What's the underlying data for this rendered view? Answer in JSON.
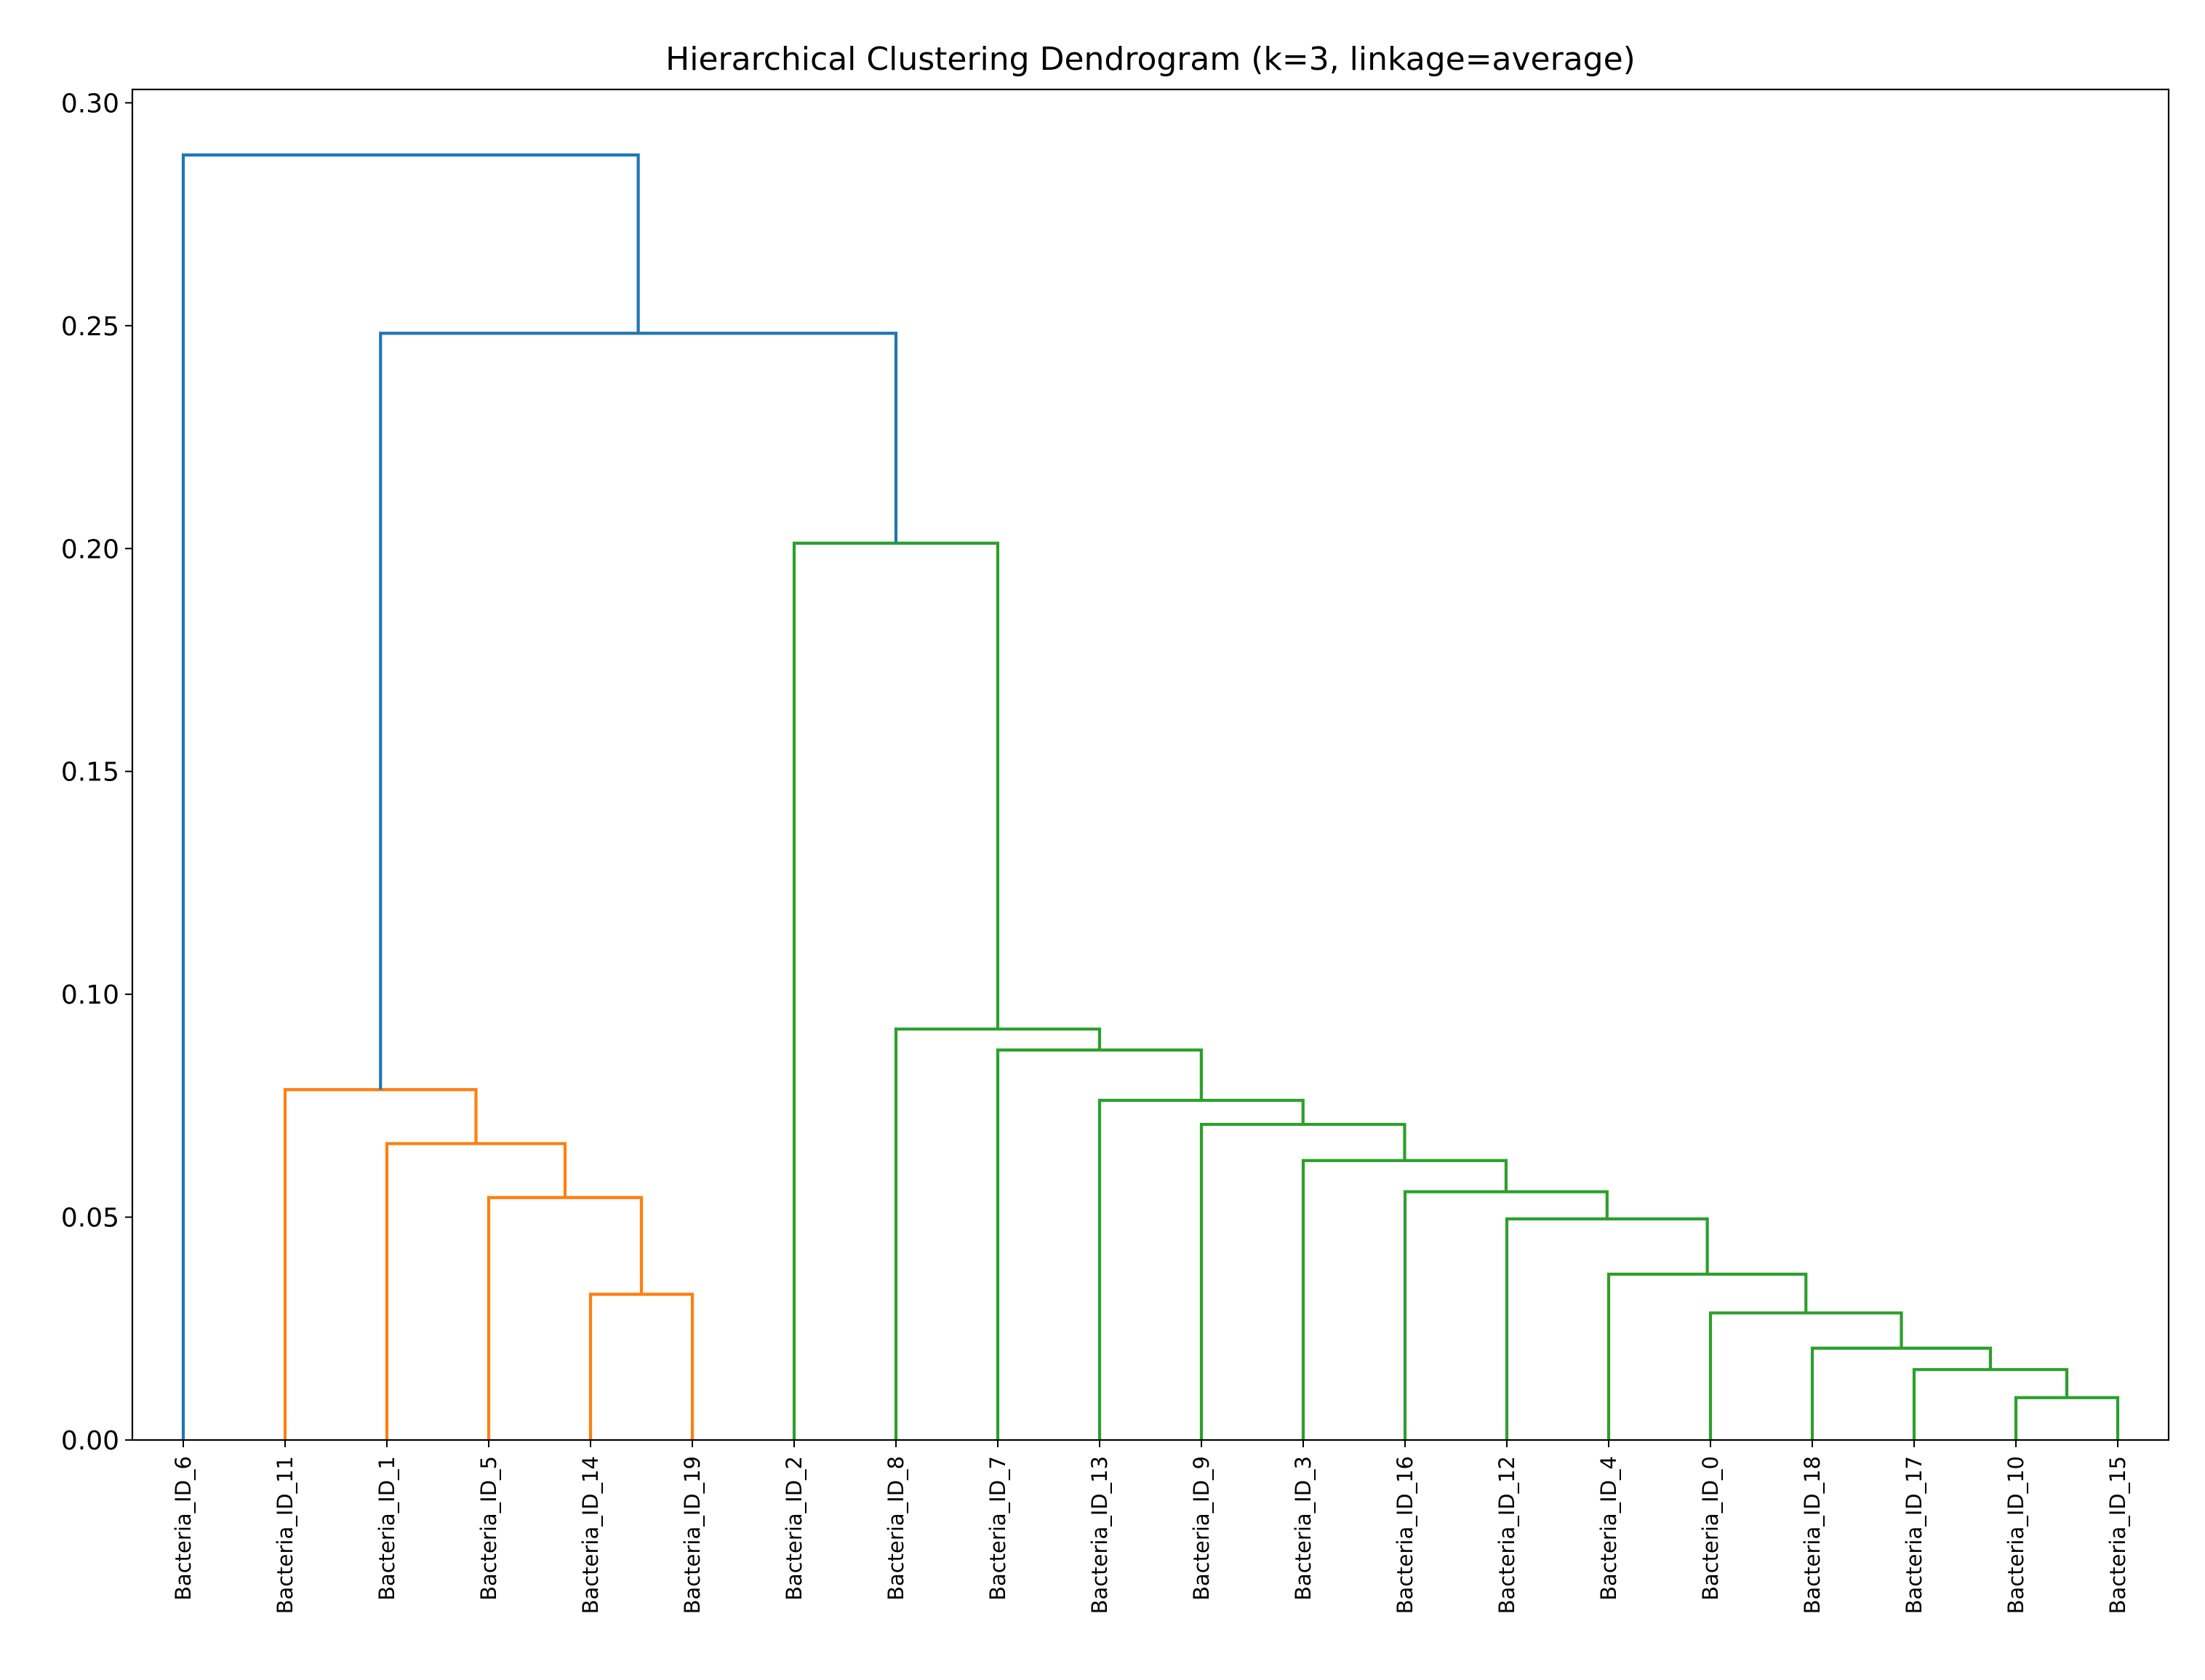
{
  "chart_data": {
    "type": "dendrogram",
    "title": "Hierarchical Clustering Dendrogram (k=3, linkage=average)",
    "xlabel": "",
    "ylabel": "",
    "ylim": [
      0,
      0.303
    ],
    "yticks": [
      "0.00",
      "0.05",
      "0.10",
      "0.15",
      "0.20",
      "0.25",
      "0.30"
    ],
    "ytick_values": [
      0,
      0.05,
      0.1,
      0.15,
      0.2,
      0.25,
      0.3
    ],
    "grid": false,
    "legend": "none",
    "leaves": [
      "Bacteria_ID_6",
      "Bacteria_ID_11",
      "Bacteria_ID_1",
      "Bacteria_ID_5",
      "Bacteria_ID_14",
      "Bacteria_ID_19",
      "Bacteria_ID_2",
      "Bacteria_ID_8",
      "Bacteria_ID_7",
      "Bacteria_ID_13",
      "Bacteria_ID_9",
      "Bacteria_ID_3",
      "Bacteria_ID_16",
      "Bacteria_ID_12",
      "Bacteria_ID_4",
      "Bacteria_ID_0",
      "Bacteria_ID_18",
      "Bacteria_ID_17",
      "Bacteria_ID_10",
      "Bacteria_ID_15"
    ],
    "colors": {
      "above_threshold": "#1f77b4",
      "cluster_1": "#ff7f0e",
      "cluster_2": "#2ca02c"
    },
    "merges": [
      {
        "left": 18,
        "right": 19,
        "height": 0.0095,
        "color": "cluster_2"
      },
      {
        "left": 17,
        "right": "m0",
        "height": 0.0158,
        "color": "cluster_2"
      },
      {
        "left": 16,
        "right": "m1",
        "height": 0.0206,
        "color": "cluster_2"
      },
      {
        "left": 15,
        "right": "m2",
        "height": 0.0285,
        "color": "cluster_2"
      },
      {
        "left": 14,
        "right": "m3",
        "height": 0.0372,
        "color": "cluster_2"
      },
      {
        "left": 13,
        "right": "m4",
        "height": 0.0496,
        "color": "cluster_2"
      },
      {
        "left": 12,
        "right": "m5",
        "height": 0.0557,
        "color": "cluster_2"
      },
      {
        "left": 11,
        "right": "m6",
        "height": 0.0627,
        "color": "cluster_2"
      },
      {
        "left": 10,
        "right": "m7",
        "height": 0.0708,
        "color": "cluster_2"
      },
      {
        "left": 9,
        "right": "m8",
        "height": 0.0762,
        "color": "cluster_2"
      },
      {
        "left": 8,
        "right": "m9",
        "height": 0.0875,
        "color": "cluster_2"
      },
      {
        "left": 7,
        "right": "m10",
        "height": 0.0922,
        "color": "cluster_2"
      },
      {
        "left": 6,
        "right": "m11",
        "height": 0.2012,
        "color": "cluster_2"
      },
      {
        "left": 4,
        "right": 5,
        "height": 0.0327,
        "color": "cluster_1"
      },
      {
        "left": 3,
        "right": "m13",
        "height": 0.0544,
        "color": "cluster_1"
      },
      {
        "left": 2,
        "right": "m14",
        "height": 0.0665,
        "color": "cluster_1"
      },
      {
        "left": 1,
        "right": "m15",
        "height": 0.0786,
        "color": "cluster_1"
      },
      {
        "left": "m16",
        "right": "m12",
        "height": 0.2483,
        "color": "above_threshold"
      },
      {
        "left": 0,
        "right": "m17",
        "height": 0.2883,
        "color": "above_threshold"
      }
    ]
  }
}
